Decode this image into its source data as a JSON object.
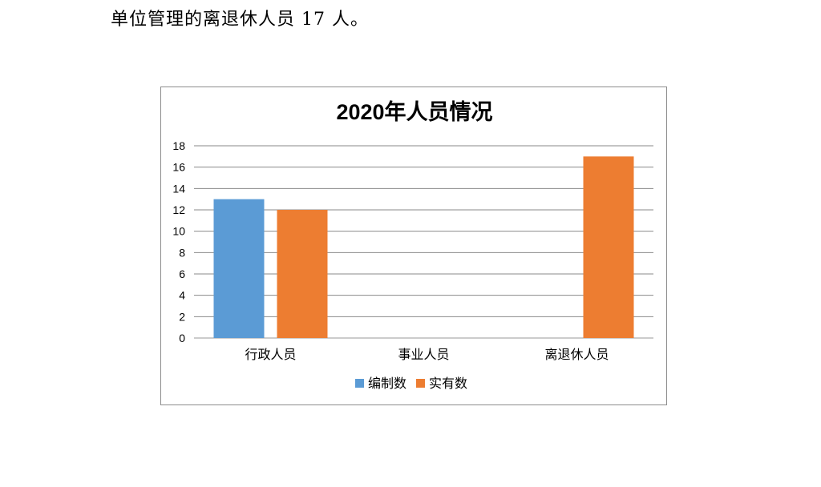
{
  "document": {
    "text_line": "单位管理的离退休人员 17 人。"
  },
  "chart_data": {
    "type": "bar",
    "title": "2020年人员情况",
    "categories": [
      "行政人员",
      "事业人员",
      "离退休人员"
    ],
    "series": [
      {
        "name": "编制数",
        "values": [
          13,
          0,
          0
        ],
        "color": "#5b9bd5"
      },
      {
        "name": "实有数",
        "values": [
          12,
          0,
          17
        ],
        "color": "#ed7d31"
      }
    ],
    "ylim": [
      0,
      18
    ],
    "yticks": [
      0,
      2,
      4,
      6,
      8,
      10,
      12,
      14,
      16,
      18
    ],
    "grid": true,
    "legend_position": "bottom"
  }
}
